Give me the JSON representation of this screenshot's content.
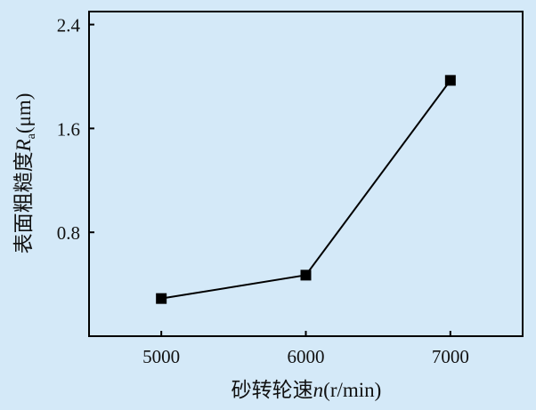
{
  "chart_data": {
    "type": "line",
    "title": "",
    "xlabel": "砂转轮速n(r/min)",
    "xlabel_parts": {
      "text": "砂转轮速",
      "var": "n",
      "unit": "(r/min)"
    },
    "ylabel": "表面粗糙度Ra(μm)",
    "ylabel_parts": {
      "text": "表面粗糙度",
      "var": "R",
      "sub": "a",
      "unit": "(μm)"
    },
    "x": [
      5000,
      6000,
      7000
    ],
    "y": [
      0.29,
      0.47,
      1.97
    ],
    "xticks": [
      5000,
      6000,
      7000
    ],
    "xtick_labels": [
      "5000",
      "6000",
      "7000"
    ],
    "yticks": [
      0.8,
      1.6,
      2.4
    ],
    "ytick_labels": [
      "0.8",
      "1.6",
      "2.4"
    ],
    "xlim": [
      4500,
      7500
    ],
    "ylim": [
      0,
      2.5
    ],
    "grid": false,
    "marker": "square",
    "colors": {
      "background": "#d4e9f8",
      "line": "#000000"
    }
  }
}
